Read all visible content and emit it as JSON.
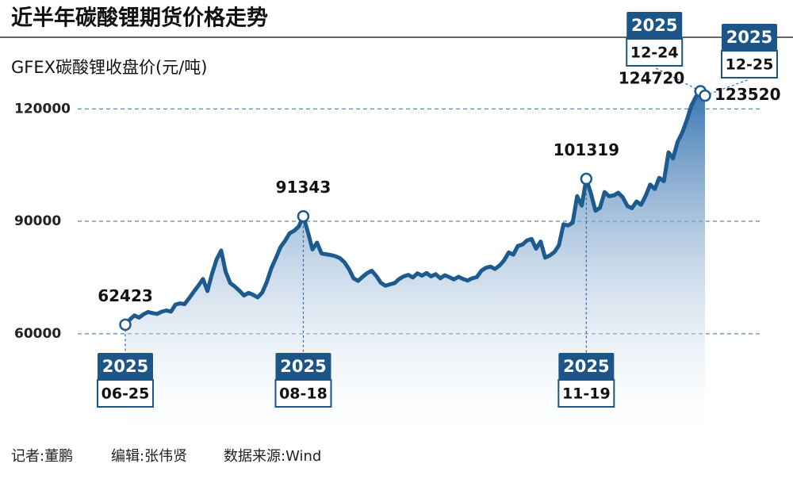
{
  "chart_data": {
    "type": "area-line",
    "title": "近半年碳酸锂期货价格走势",
    "subtitle": "GFEX碳酸锂收盘价(元/吨)",
    "footer": [
      "记者:董鹏",
      "编辑:张伟贤",
      "数据来源:Wind"
    ],
    "year": "2025",
    "color": "#1d5a8e",
    "grid": true,
    "ylim": [
      35000,
      130000
    ],
    "yticks": [
      60000,
      90000,
      120000
    ],
    "categories": [
      "06-25",
      null,
      null,
      null,
      null,
      null,
      null,
      null,
      null,
      null,
      null,
      null,
      null,
      null,
      null,
      null,
      null,
      null,
      null,
      null,
      null,
      null,
      null,
      null,
      null,
      null,
      null,
      null,
      null,
      null,
      null,
      null,
      null,
      null,
      null,
      null,
      null,
      null,
      null,
      "08-18",
      null,
      null,
      null,
      null,
      null,
      null,
      null,
      null,
      null,
      null,
      null,
      null,
      null,
      null,
      null,
      null,
      null,
      null,
      null,
      null,
      null,
      null,
      null,
      null,
      null,
      null,
      null,
      null,
      null,
      null,
      null,
      null,
      null,
      null,
      null,
      null,
      null,
      null,
      null,
      null,
      null,
      null,
      null,
      null,
      null,
      null,
      null,
      null,
      null,
      null,
      null,
      null,
      null,
      null,
      null,
      null,
      null,
      null,
      null,
      null,
      null,
      "11-19",
      null,
      null,
      null,
      null,
      null,
      null,
      null,
      null,
      null,
      null,
      null,
      null,
      null,
      null,
      null,
      null,
      null,
      null,
      null,
      null,
      null,
      null,
      null,
      null,
      "12-24",
      "12-25"
    ],
    "values": [
      62423,
      63800,
      64900,
      64300,
      65200,
      65800,
      65500,
      65300,
      65900,
      66200,
      65900,
      67800,
      68100,
      67900,
      69500,
      71200,
      72800,
      74600,
      71400,
      76000,
      79800,
      82200,
      76500,
      73500,
      72600,
      71500,
      70200,
      70900,
      70400,
      69700,
      71000,
      73800,
      77500,
      80200,
      83100,
      84800,
      86800,
      87500,
      88600,
      91343,
      87200,
      82500,
      84300,
      81400,
      81200,
      81000,
      80700,
      80200,
      79100,
      77300,
      74800,
      74100,
      75200,
      76200,
      76800,
      75400,
      73600,
      72800,
      73200,
      73500,
      74600,
      75300,
      75700,
      75000,
      76100,
      75500,
      76200,
      75300,
      75900,
      74800,
      75600,
      75100,
      74500,
      75200,
      74600,
      74200,
      74800,
      75100,
      76800,
      77600,
      77900,
      77300,
      78200,
      79600,
      81700,
      81100,
      83400,
      83800,
      84900,
      85300,
      82700,
      84600,
      80300,
      80900,
      81800,
      83600,
      89200,
      88900,
      89600,
      96700,
      94200,
      101319,
      97500,
      92800,
      93600,
      97800,
      96700,
      96900,
      97600,
      96400,
      94100,
      93500,
      95300,
      94400,
      96800,
      99800,
      98600,
      101600,
      100700,
      108400,
      106800,
      111200,
      113600,
      116900,
      120800,
      123200,
      124720,
      123520
    ]
  }
}
